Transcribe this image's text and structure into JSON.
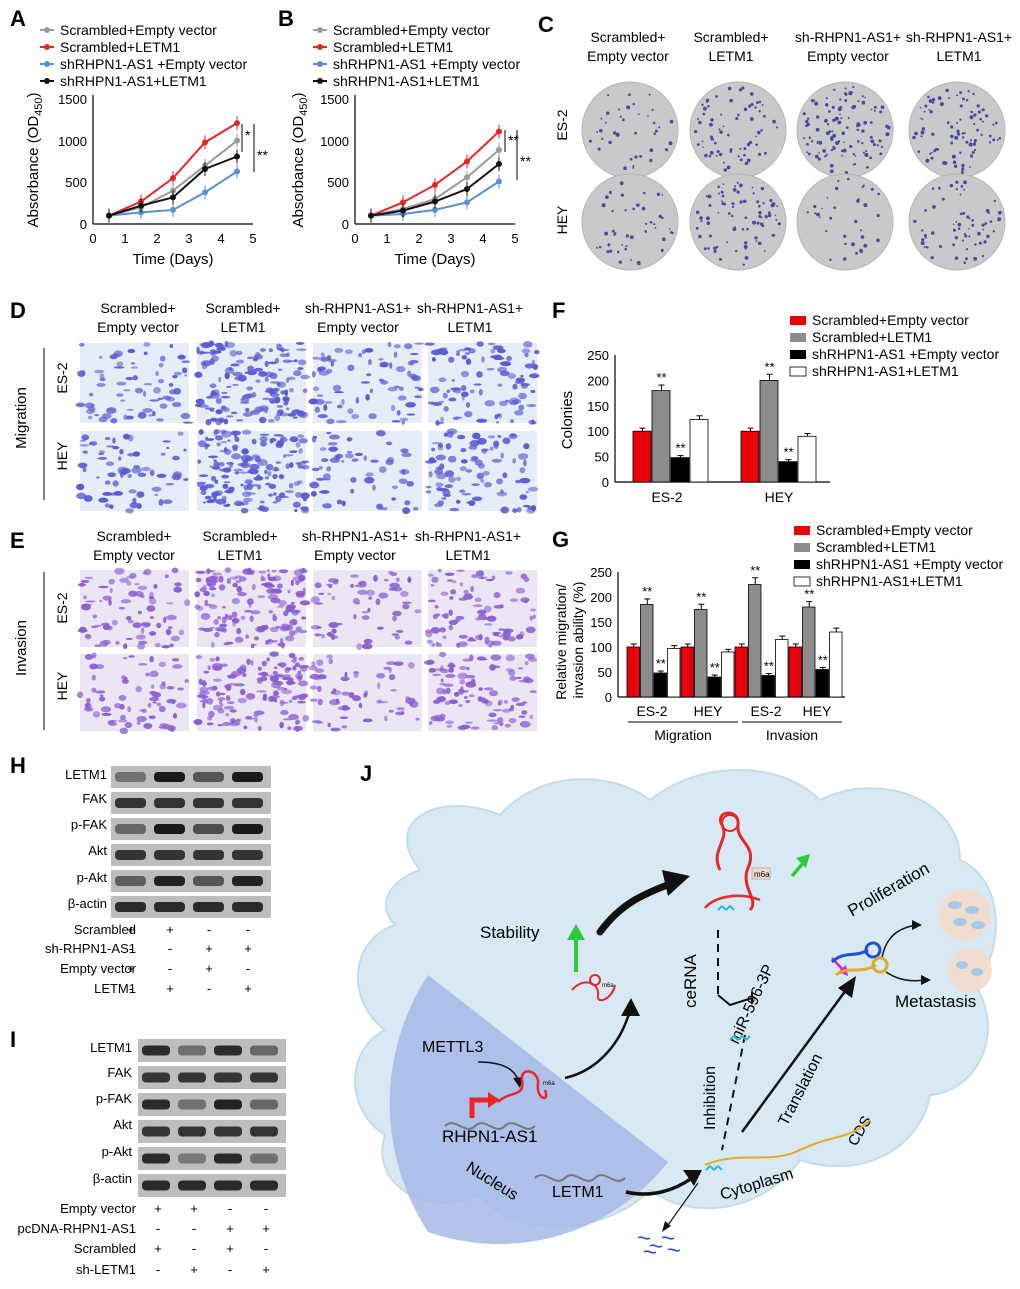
{
  "panel_letters": [
    "A",
    "B",
    "C",
    "D",
    "E",
    "F",
    "G",
    "H",
    "I",
    "J"
  ],
  "colors": {
    "scr_empty": "#9a9a9a",
    "scr_letm1": "#e8262a",
    "sh_empty": "#5b8fd6",
    "sh_letm1": "#111111",
    "bar_red": "#e8000b",
    "bar_gray": "#8c8c8c",
    "bar_black": "#000000",
    "bar_white": "#ffffff",
    "cell_bg": "#d8e9f3",
    "nucleus": "#a6b8e8",
    "crystal": "#5a5ad0",
    "invasion": "#8a5cd0"
  },
  "legend4": {
    "scr_empty": "Scrambled+Empty vector",
    "scr_letm1": "Scrambled+LETM1",
    "sh_empty": "shRHPN1-AS1 +Empty vector",
    "sh_letm1": "shRHPN1-AS1+LETM1"
  },
  "chart_data": [
    {
      "type": "line",
      "panel": "A",
      "x": [
        0.5,
        1.5,
        2.5,
        3.5,
        4.5
      ],
      "series": [
        {
          "name": "Scrambled+Empty vector",
          "values": [
            100,
            200,
            400,
            700,
            1000
          ]
        },
        {
          "name": "Scrambled+LETM1",
          "values": [
            100,
            270,
            550,
            980,
            1210
          ]
        },
        {
          "name": "shRHPN1-AS1 +Empty vector",
          "values": [
            100,
            140,
            170,
            380,
            630
          ]
        },
        {
          "name": "shRHPN1-AS1+LETM1",
          "values": [
            100,
            220,
            320,
            660,
            810
          ]
        }
      ],
      "xlabel": "Time (Days)",
      "ylabel": "Absorbance (OD",
      "ylabel_sub": "450",
      "ylabel_close": ")",
      "xlim": [
        0,
        5
      ],
      "ylim": [
        0,
        1500
      ],
      "xticks": [
        "0",
        "1",
        "2",
        "3",
        "4",
        "5"
      ],
      "yticks": [
        "0",
        "500",
        "1000",
        "1500"
      ],
      "sig": [
        "*",
        "**"
      ]
    },
    {
      "type": "line",
      "panel": "B",
      "x": [
        0.5,
        1.5,
        2.5,
        3.5,
        4.5
      ],
      "series": [
        {
          "name": "Scrambled+Empty vector",
          "values": [
            100,
            180,
            300,
            560,
            890
          ]
        },
        {
          "name": "Scrambled+LETM1",
          "values": [
            100,
            260,
            470,
            750,
            1110
          ]
        },
        {
          "name": "shRHPN1-AS1 +Empty vector",
          "values": [
            100,
            120,
            170,
            260,
            510
          ]
        },
        {
          "name": "shRHPN1-AS1+LETM1",
          "values": [
            100,
            160,
            270,
            420,
            720
          ]
        }
      ],
      "xlabel": "Time (Days)",
      "ylabel": "Absorbance (OD",
      "ylabel_sub": "450",
      "ylabel_close": ")",
      "xlim": [
        0,
        5
      ],
      "ylim": [
        0,
        1500
      ],
      "xticks": [
        "0",
        "1",
        "2",
        "3",
        "4",
        "5"
      ],
      "yticks": [
        "0",
        "500",
        "1000",
        "1500"
      ],
      "sig": [
        "**",
        "**"
      ]
    },
    {
      "type": "bar",
      "panel": "F",
      "categories": [
        "ES-2",
        "HEY"
      ],
      "series": [
        {
          "name": "Scrambled+Empty vector",
          "values": [
            100,
            100
          ],
          "sig": [
            "",
            ""
          ]
        },
        {
          "name": "Scrambled+LETM1",
          "values": [
            180,
            200
          ],
          "sig": [
            "**",
            "**"
          ]
        },
        {
          "name": "shRHPN1-AS1 +Empty vector",
          "values": [
            48,
            40
          ],
          "sig": [
            "**",
            "**"
          ]
        },
        {
          "name": "shRHPN1-AS1+LETM1",
          "values": [
            123,
            90
          ],
          "sig": [
            "",
            ""
          ]
        }
      ],
      "ylabel": "Colonies",
      "ylim": [
        0,
        250
      ],
      "yticks": [
        "0",
        "50",
        "100",
        "150",
        "200",
        "250"
      ]
    },
    {
      "type": "bar",
      "panel": "G",
      "categories": [
        "ES-2",
        "HEY",
        "ES-2",
        "HEY"
      ],
      "groups": [
        "Migration",
        "Invasion"
      ],
      "series": [
        {
          "name": "Scrambled+Empty vector",
          "values": [
            100,
            100,
            100,
            100
          ],
          "sig": [
            "",
            "",
            "",
            ""
          ]
        },
        {
          "name": "Scrambled+LETM1",
          "values": [
            185,
            175,
            225,
            180
          ],
          "sig": [
            "**",
            "**",
            "**",
            "**"
          ]
        },
        {
          "name": "shRHPN1-AS1 +Empty vector",
          "values": [
            48,
            40,
            43,
            55
          ],
          "sig": [
            "**",
            "**",
            "**",
            "**"
          ]
        },
        {
          "name": "shRHPN1-AS1+LETM1",
          "values": [
            97,
            90,
            115,
            130
          ],
          "sig": [
            "",
            "",
            "",
            ""
          ]
        }
      ],
      "ylabel": "Relative migration/",
      "ylabel2": "invasion ability (%)",
      "ylim": [
        0,
        250
      ],
      "yticks": [
        "0",
        "50",
        "100",
        "150",
        "200",
        "250"
      ]
    }
  ],
  "panelC": {
    "columns": [
      "Scrambled+",
      "Empty vector",
      "Scrambled+",
      "LETM1",
      "sh-RHPN1-AS1+",
      "Empty vector",
      "sh-RHPN1-AS1+",
      "LETM1"
    ],
    "rows": [
      "ES-2",
      "HEY"
    ]
  },
  "panelD": {
    "columns": [
      "Scrambled+",
      "Empty vector",
      "Scrambled+",
      "LETM1",
      "sh-RHPN1-AS1+",
      "Empty vector",
      "sh-RHPN1-AS1+",
      "LETM1"
    ],
    "rows": [
      "ES-2",
      "HEY"
    ],
    "side": "Migration"
  },
  "panelE": {
    "columns": [
      "Scrambled+",
      "Empty vector",
      "Scrambled+",
      "LETM1",
      "sh-RHPN1-AS1+",
      "Empty vector",
      "sh-RHPN1-AS1+",
      "LETM1"
    ],
    "rows": [
      "ES-2",
      "HEY"
    ],
    "side": "Invasion"
  },
  "panelH": {
    "bands": [
      "LETM1",
      "FAK",
      "p-FAK",
      "Akt",
      "p-Akt",
      "β-actin"
    ],
    "intensity": [
      [
        0.45,
        0.95,
        0.6,
        0.95
      ],
      [
        0.8,
        0.8,
        0.8,
        0.8
      ],
      [
        0.5,
        0.95,
        0.65,
        0.95
      ],
      [
        0.8,
        0.8,
        0.8,
        0.8
      ],
      [
        0.55,
        0.9,
        0.6,
        0.9
      ],
      [
        0.85,
        0.85,
        0.85,
        0.85
      ]
    ],
    "conditions": [
      {
        "label": "Scrambled",
        "signs": [
          "+",
          "+",
          "-",
          "-"
        ]
      },
      {
        "label": "sh-RHPN1-AS1",
        "signs": [
          "-",
          "-",
          "+",
          "+"
        ]
      },
      {
        "label": "Empty vector",
        "signs": [
          "+",
          "-",
          "+",
          "-"
        ]
      },
      {
        "label": "LETM1",
        "signs": [
          "-",
          "+",
          "-",
          "+"
        ]
      }
    ]
  },
  "panelI": {
    "bands": [
      "LETM1",
      "FAK",
      "p-FAK",
      "Akt",
      "p-Akt",
      "β-actin"
    ],
    "intensity": [
      [
        0.85,
        0.45,
        0.85,
        0.5
      ],
      [
        0.8,
        0.8,
        0.8,
        0.8
      ],
      [
        0.85,
        0.45,
        0.9,
        0.5
      ],
      [
        0.8,
        0.8,
        0.8,
        0.8
      ],
      [
        0.85,
        0.4,
        0.85,
        0.45
      ],
      [
        0.85,
        0.85,
        0.85,
        0.85
      ]
    ],
    "conditions": [
      {
        "label": "Empty vector",
        "signs": [
          "+",
          "+",
          "-",
          "-"
        ]
      },
      {
        "label": "pcDNA-RHPN1-AS1",
        "signs": [
          "-",
          "-",
          "+",
          "+"
        ]
      },
      {
        "label": "Scrambled",
        "signs": [
          "+",
          "-",
          "+",
          "-"
        ]
      },
      {
        "label": "sh-LETM1",
        "signs": [
          "-",
          "+",
          "-",
          "+"
        ]
      }
    ]
  },
  "panelJ": {
    "stability": "Stability",
    "cerna": "ceRNA",
    "mir": "miR-596-3P",
    "inhibition": "Inhibition",
    "translation": "Translation",
    "proliferation": "Proliferation",
    "metastasis": "Metastasis",
    "mettl3": "METTL3",
    "rhpn1": "RHPN1-AS1",
    "nucleus": "Nucleus",
    "letm1": "LETM1",
    "cytoplasm": "Cytoplasm",
    "cds": "CDS",
    "m6a": "m6a"
  }
}
